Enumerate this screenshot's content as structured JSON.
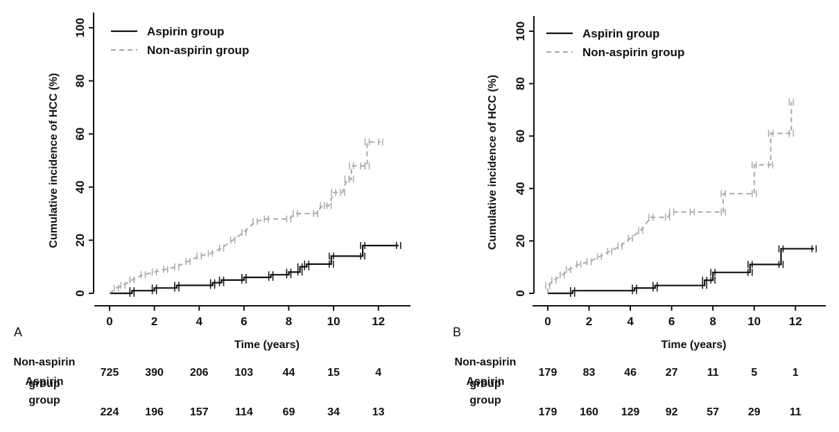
{
  "chart_data": [
    {
      "type": "line",
      "panel": "A",
      "xlabel": "Time (years)",
      "ylabel": "Cumulative incidence of HCC (%)",
      "xlim": [
        0,
        13
      ],
      "ylim": [
        0,
        100
      ],
      "xticks": [
        0,
        2,
        4,
        6,
        8,
        10,
        12
      ],
      "yticks": [
        0,
        20,
        40,
        60,
        80,
        100
      ],
      "legend_position": "top-left",
      "series": [
        {
          "name": "Aspirin group",
          "style": "solid",
          "color": "#111111",
          "points": [
            [
              0,
              0
            ],
            [
              1.0,
              0
            ],
            [
              1.0,
              1
            ],
            [
              2.0,
              1
            ],
            [
              2.0,
              2
            ],
            [
              3.0,
              2
            ],
            [
              3.0,
              3
            ],
            [
              4.6,
              3
            ],
            [
              4.6,
              4
            ],
            [
              5.0,
              4
            ],
            [
              5.0,
              5
            ],
            [
              6.0,
              5
            ],
            [
              6.0,
              6
            ],
            [
              7.2,
              6
            ],
            [
              7.2,
              7
            ],
            [
              8.0,
              7
            ],
            [
              8.0,
              8
            ],
            [
              8.5,
              8
            ],
            [
              8.5,
              10
            ],
            [
              8.8,
              10
            ],
            [
              8.8,
              11
            ],
            [
              9.9,
              11
            ],
            [
              9.9,
              14
            ],
            [
              11.3,
              14
            ],
            [
              11.3,
              18
            ],
            [
              12.9,
              18
            ]
          ]
        },
        {
          "name": "Non-aspirin group",
          "style": "dashed",
          "color": "#a9a9a9",
          "points": [
            [
              0,
              0
            ],
            [
              0.3,
              2
            ],
            [
              0.6,
              3
            ],
            [
              1.0,
              5
            ],
            [
              1.5,
              7
            ],
            [
              2.0,
              8
            ],
            [
              2.5,
              9
            ],
            [
              3.0,
              10
            ],
            [
              3.5,
              12
            ],
            [
              4.0,
              14
            ],
            [
              4.5,
              15
            ],
            [
              5.0,
              17
            ],
            [
              5.5,
              20
            ],
            [
              6.0,
              23
            ],
            [
              6.5,
              27
            ],
            [
              7.0,
              28
            ],
            [
              8.0,
              28
            ],
            [
              8.3,
              30
            ],
            [
              9.2,
              30
            ],
            [
              9.5,
              33
            ],
            [
              9.8,
              33
            ],
            [
              10.0,
              38
            ],
            [
              10.4,
              38
            ],
            [
              10.6,
              43
            ],
            [
              10.8,
              43
            ],
            [
              10.8,
              48
            ],
            [
              11.3,
              48
            ],
            [
              11.5,
              48
            ],
            [
              11.5,
              57
            ],
            [
              12.1,
              57
            ]
          ]
        }
      ],
      "risk_table": {
        "rows": [
          {
            "label_line1": "Non-aspirin",
            "label_line2": "group",
            "values": [
              "725",
              "390",
              "206",
              "103",
              "44",
              "15",
              "4"
            ]
          },
          {
            "label_line1": "Aspirin",
            "label_line2": "group",
            "values": [
              "224",
              "196",
              "157",
              "114",
              "69",
              "34",
              "13"
            ]
          }
        ]
      }
    },
    {
      "type": "line",
      "panel": "B",
      "xlabel": "Time (years)",
      "ylabel": "Cumulative incidence of HCC (%)",
      "xlim": [
        0,
        13
      ],
      "ylim": [
        0,
        100
      ],
      "xticks": [
        0,
        2,
        4,
        6,
        8,
        10,
        12
      ],
      "yticks": [
        0,
        20,
        40,
        60,
        80,
        100
      ],
      "legend_position": "top-left",
      "series": [
        {
          "name": "Aspirin group",
          "style": "solid",
          "color": "#111111",
          "points": [
            [
              0,
              0
            ],
            [
              1.2,
              0
            ],
            [
              1.2,
              1
            ],
            [
              4.2,
              1
            ],
            [
              4.2,
              2
            ],
            [
              5.2,
              2
            ],
            [
              5.2,
              3
            ],
            [
              7.6,
              3
            ],
            [
              7.6,
              5
            ],
            [
              8.0,
              5
            ],
            [
              8.0,
              8
            ],
            [
              9.8,
              8
            ],
            [
              9.8,
              11
            ],
            [
              11.3,
              11
            ],
            [
              11.3,
              17
            ],
            [
              12.9,
              17
            ]
          ]
        },
        {
          "name": "Non-aspirin group",
          "style": "dashed",
          "color": "#a9a9a9",
          "points": [
            [
              0,
              0
            ],
            [
              0,
              3
            ],
            [
              0.3,
              5
            ],
            [
              0.7,
              7
            ],
            [
              1.0,
              9
            ],
            [
              1.5,
              11
            ],
            [
              2.0,
              12
            ],
            [
              2.5,
              14
            ],
            [
              3.0,
              16
            ],
            [
              3.5,
              18
            ],
            [
              4.0,
              21
            ],
            [
              4.5,
              24
            ],
            [
              5.0,
              29
            ],
            [
              5.8,
              29
            ],
            [
              6.0,
              31
            ],
            [
              7.0,
              31
            ],
            [
              8.5,
              31
            ],
            [
              8.5,
              38
            ],
            [
              10.0,
              38
            ],
            [
              10.0,
              49
            ],
            [
              10.8,
              49
            ],
            [
              10.8,
              61
            ],
            [
              11.8,
              61
            ],
            [
              11.8,
              73
            ]
          ]
        }
      ],
      "risk_table": {
        "rows": [
          {
            "label_line1": "Non-aspirin",
            "label_line2": "group",
            "values": [
              "179",
              "83",
              "46",
              "27",
              "11",
              "5",
              "1"
            ]
          },
          {
            "label_line1": "Aspirin",
            "label_line2": "group",
            "values": [
              "179",
              "160",
              "129",
              "92",
              "57",
              "29",
              "11"
            ]
          }
        ]
      }
    }
  ]
}
